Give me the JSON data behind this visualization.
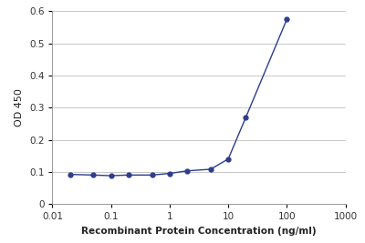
{
  "x": [
    0.02,
    0.05,
    0.1,
    0.2,
    0.5,
    1.0,
    2.0,
    5.0,
    10.0,
    20.0,
    100.0
  ],
  "y": [
    0.092,
    0.09,
    0.088,
    0.09,
    0.09,
    0.095,
    0.103,
    0.108,
    0.14,
    0.27,
    0.575
  ],
  "color": "#2d3c8e",
  "xlabel": "Recombinant Protein Concentration (ng/ml)",
  "ylabel": "OD 450",
  "xlim": [
    0.01,
    1000
  ],
  "ylim": [
    0,
    0.6
  ],
  "yticks": [
    0,
    0.1,
    0.2,
    0.3,
    0.4,
    0.5,
    0.6
  ],
  "xtick_labels": [
    "0.01",
    "0.1",
    "1",
    "10",
    "100",
    "1000"
  ],
  "xtick_vals": [
    0.01,
    0.1,
    1,
    10,
    100,
    1000
  ],
  "background_color": "#ffffff",
  "grid_color": "#c8c8c8",
  "marker_size": 3.5,
  "line_width": 1.0,
  "xlabel_fontsize": 7.5,
  "ylabel_fontsize": 8,
  "tick_fontsize": 7.5
}
